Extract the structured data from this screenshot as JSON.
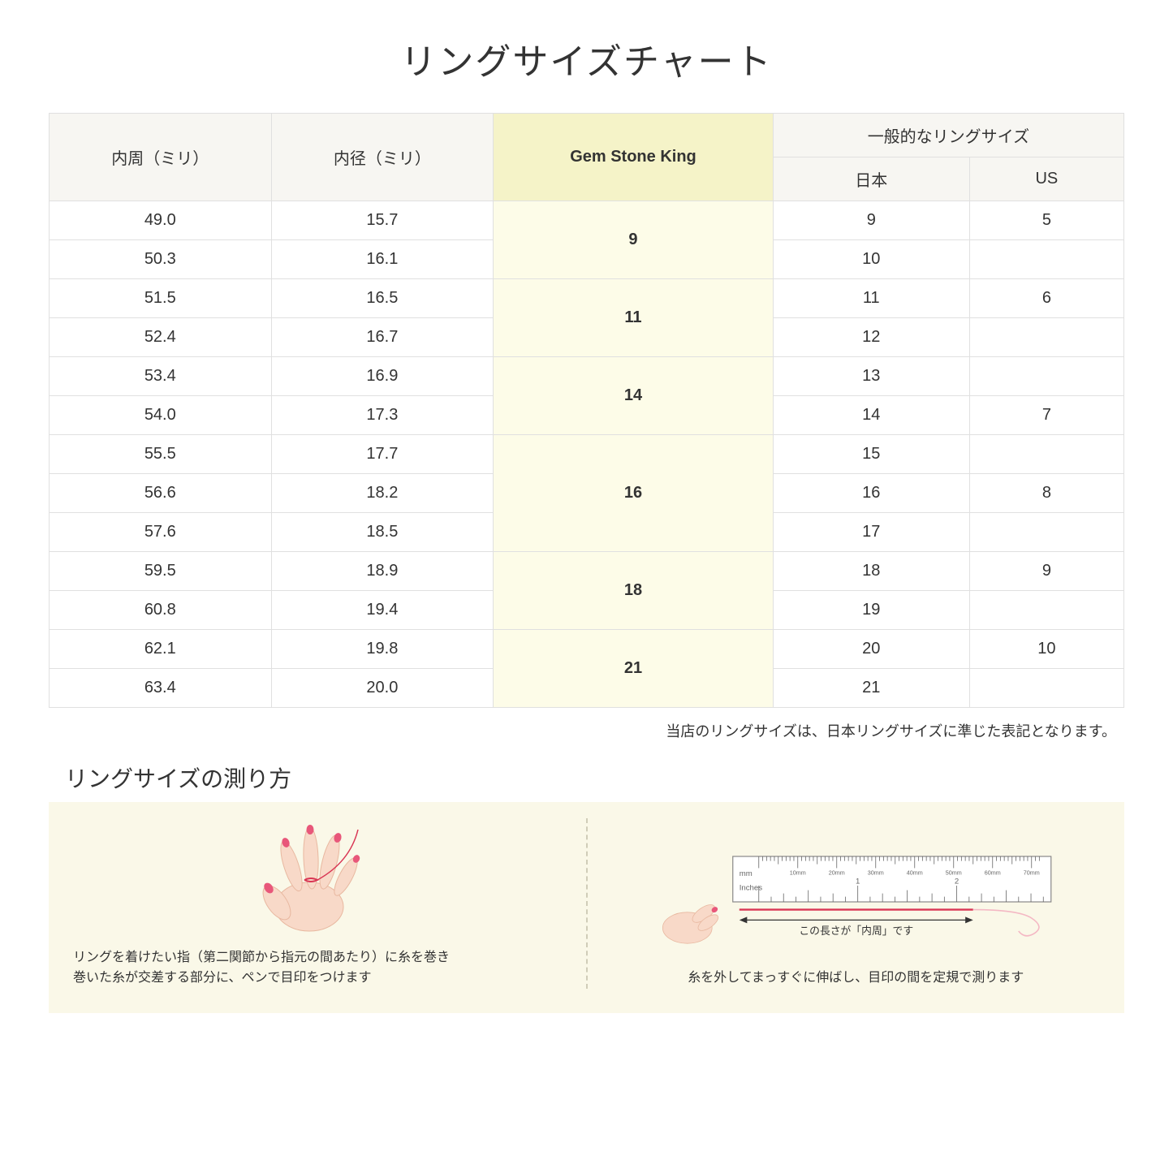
{
  "title": "リングサイズチャート",
  "table": {
    "headers": {
      "circumference": "内周（ミリ）",
      "diameter": "内径（ミリ）",
      "gsk": "Gem Stone King",
      "general": "一般的なリングサイズ",
      "japan": "日本",
      "us": "US"
    },
    "rows": [
      {
        "circ": "49.0",
        "diam": "15.7",
        "gsk": "9",
        "gsk_span": 2,
        "jp": "9",
        "us": "5"
      },
      {
        "circ": "50.3",
        "diam": "16.1",
        "jp": "10",
        "us": ""
      },
      {
        "circ": "51.5",
        "diam": "16.5",
        "gsk": "11",
        "gsk_span": 2,
        "jp": "11",
        "us": "6"
      },
      {
        "circ": "52.4",
        "diam": "16.7",
        "jp": "12",
        "us": ""
      },
      {
        "circ": "53.4",
        "diam": "16.9",
        "gsk": "14",
        "gsk_span": 2,
        "jp": "13",
        "us": ""
      },
      {
        "circ": "54.0",
        "diam": "17.3",
        "jp": "14",
        "us": "7"
      },
      {
        "circ": "55.5",
        "diam": "17.7",
        "gsk": "16",
        "gsk_span": 3,
        "jp": "15",
        "us": ""
      },
      {
        "circ": "56.6",
        "diam": "18.2",
        "jp": "16",
        "us": "8"
      },
      {
        "circ": "57.6",
        "diam": "18.5",
        "jp": "17",
        "us": ""
      },
      {
        "circ": "59.5",
        "diam": "18.9",
        "gsk": "18",
        "gsk_span": 2,
        "jp": "18",
        "us": "9"
      },
      {
        "circ": "60.8",
        "diam": "19.4",
        "jp": "19",
        "us": ""
      },
      {
        "circ": "62.1",
        "diam": "19.8",
        "gsk": "21",
        "gsk_span": 2,
        "jp": "20",
        "us": "10"
      },
      {
        "circ": "63.4",
        "diam": "20.0",
        "jp": "21",
        "us": ""
      }
    ],
    "note": "当店のリングサイズは、日本リングサイズに準じた表記となります。",
    "colors": {
      "header_bg": "#f7f6f2",
      "highlight_header_bg": "#f5f3c8",
      "highlight_cell_bg": "#fdfce8",
      "border": "#e0e0e0"
    }
  },
  "measure": {
    "title": "リングサイズの測り方",
    "left_text": "リングを着けたい指（第二関節から指元の間あたり）に糸を巻き\n巻いた糸が交差する部分に、ペンで目印をつけます",
    "right_text": "糸を外してまっすぐに伸ばし、目印の間を定規で測ります",
    "ruler_label": "この長さが「内周」です",
    "ruler": {
      "mm_label": "mm",
      "inches_label": "Inches",
      "mm_ticks": [
        "10mm",
        "20mm",
        "30mm",
        "40mm",
        "50mm",
        "60mm",
        "70mm"
      ],
      "inch_ticks": [
        "1",
        "2"
      ]
    },
    "colors": {
      "panel_bg": "#faf8e8",
      "skin": "#f8d9c8",
      "skin_shadow": "#e8b8a0",
      "nail": "#e8577a",
      "thread": "#d93654",
      "ruler_border": "#888",
      "ruler_bg": "#ffffff"
    }
  }
}
